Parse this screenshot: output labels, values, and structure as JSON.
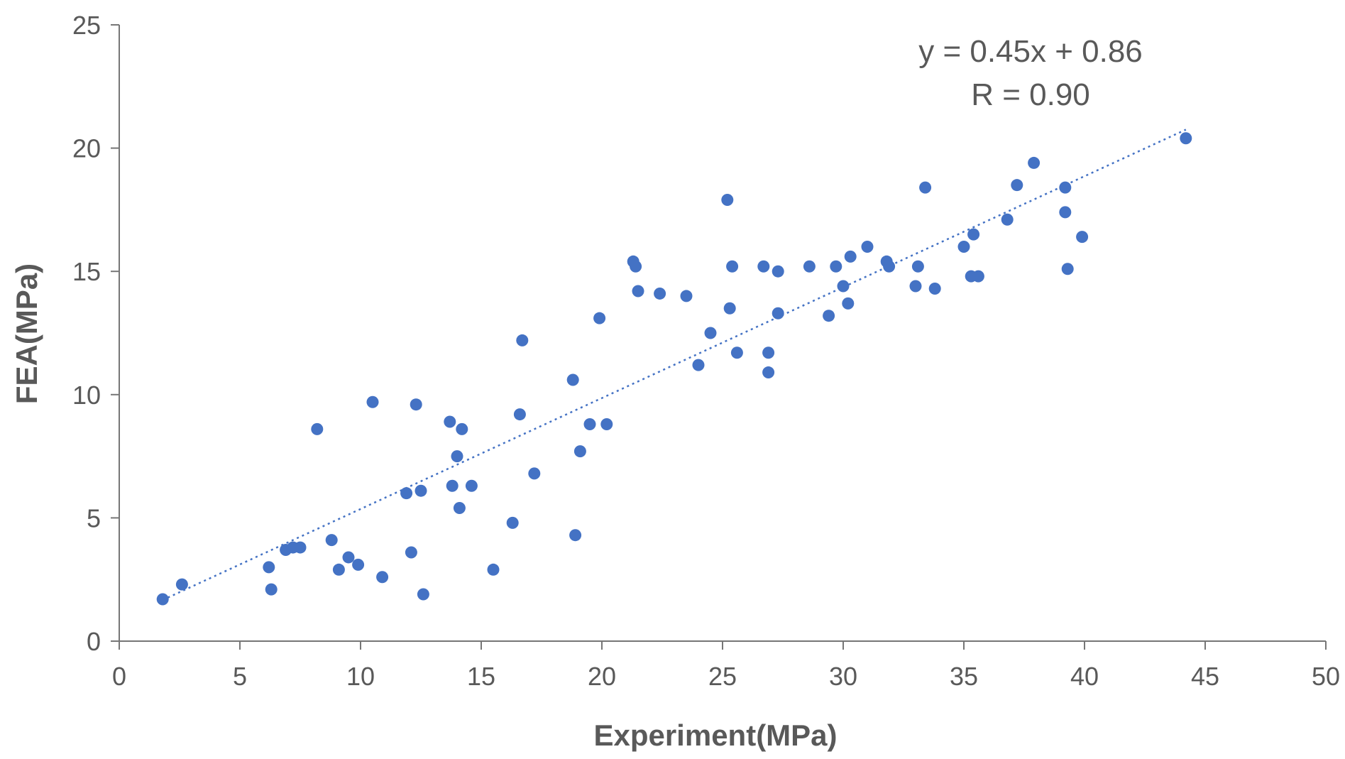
{
  "chart_data": {
    "type": "scatter",
    "title": "",
    "xlabel": "Experiment(MPa)",
    "ylabel": "FEA(MPa)",
    "xlim": [
      0,
      50
    ],
    "ylim": [
      0,
      25
    ],
    "x_ticks": [
      "0",
      "5",
      "10",
      "15",
      "20",
      "25",
      "30",
      "35",
      "40",
      "45",
      "50"
    ],
    "y_ticks": [
      "0",
      "5",
      "10",
      "15",
      "20",
      "25"
    ],
    "grid": false,
    "legend": "none",
    "marker_color": "#4472C4",
    "trendline": {
      "type": "linear",
      "slope": 0.45,
      "intercept": 0.86,
      "x_range": [
        1.8,
        44.2
      ],
      "style": "dotted",
      "color": "#4472C4"
    },
    "annotations": [
      "y = 0.45x + 0.86",
      "R = 0.90"
    ],
    "points": [
      [
        1.8,
        1.7
      ],
      [
        2.6,
        2.3
      ],
      [
        6.2,
        3.0
      ],
      [
        6.3,
        2.1
      ],
      [
        6.9,
        3.7
      ],
      [
        7.2,
        3.8
      ],
      [
        7.5,
        3.8
      ],
      [
        8.2,
        8.6
      ],
      [
        8.8,
        4.1
      ],
      [
        9.1,
        2.9
      ],
      [
        9.5,
        3.4
      ],
      [
        9.9,
        3.1
      ],
      [
        10.5,
        9.7
      ],
      [
        10.9,
        2.6
      ],
      [
        11.9,
        6.0
      ],
      [
        12.1,
        3.6
      ],
      [
        12.3,
        9.6
      ],
      [
        12.5,
        6.1
      ],
      [
        12.6,
        1.9
      ],
      [
        13.7,
        8.9
      ],
      [
        13.8,
        6.3
      ],
      [
        14.0,
        7.5
      ],
      [
        14.1,
        5.4
      ],
      [
        14.2,
        8.6
      ],
      [
        14.6,
        6.3
      ],
      [
        15.5,
        2.9
      ],
      [
        16.3,
        4.8
      ],
      [
        16.6,
        9.2
      ],
      [
        16.7,
        12.2
      ],
      [
        17.2,
        6.8
      ],
      [
        18.8,
        10.6
      ],
      [
        18.9,
        4.3
      ],
      [
        19.1,
        7.7
      ],
      [
        19.5,
        8.8
      ],
      [
        19.9,
        13.1
      ],
      [
        20.2,
        8.8
      ],
      [
        21.3,
        15.4
      ],
      [
        21.4,
        15.2
      ],
      [
        21.5,
        14.2
      ],
      [
        22.4,
        14.1
      ],
      [
        23.5,
        14.0
      ],
      [
        24.0,
        11.2
      ],
      [
        24.5,
        12.5
      ],
      [
        25.2,
        17.9
      ],
      [
        25.3,
        13.5
      ],
      [
        25.4,
        15.2
      ],
      [
        25.6,
        11.7
      ],
      [
        26.7,
        15.2
      ],
      [
        26.9,
        11.7
      ],
      [
        26.9,
        10.9
      ],
      [
        27.3,
        15.0
      ],
      [
        27.3,
        13.3
      ],
      [
        28.6,
        15.2
      ],
      [
        29.4,
        13.2
      ],
      [
        29.7,
        15.2
      ],
      [
        30.0,
        14.4
      ],
      [
        30.2,
        13.7
      ],
      [
        30.3,
        15.6
      ],
      [
        31.0,
        16.0
      ],
      [
        31.8,
        15.4
      ],
      [
        31.9,
        15.2
      ],
      [
        33.0,
        14.4
      ],
      [
        33.1,
        15.2
      ],
      [
        33.4,
        18.4
      ],
      [
        33.8,
        14.3
      ],
      [
        35.0,
        16.0
      ],
      [
        35.3,
        14.8
      ],
      [
        35.4,
        16.5
      ],
      [
        35.6,
        14.8
      ],
      [
        36.8,
        17.1
      ],
      [
        37.2,
        18.5
      ],
      [
        37.9,
        19.4
      ],
      [
        39.2,
        17.4
      ],
      [
        39.2,
        18.4
      ],
      [
        39.3,
        15.1
      ],
      [
        39.9,
        16.4
      ],
      [
        44.2,
        20.4
      ]
    ]
  }
}
